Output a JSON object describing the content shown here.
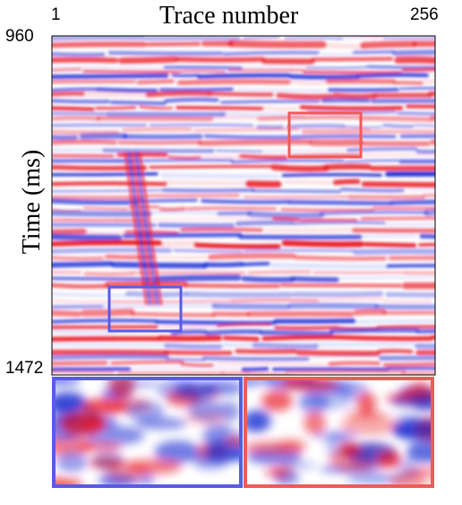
{
  "xaxis": {
    "title": "Trace number",
    "start": "1",
    "end": "256"
  },
  "yaxis": {
    "title": "Time (ms)",
    "start": "960",
    "end": "1472"
  },
  "colors": {
    "positive": "#e8141e",
    "negative": "#1428d2",
    "neutral": "#ffffff",
    "inset_left_border": "#5a5ae6",
    "inset_right_border": "#ef5a5a"
  },
  "highlight_boxes": [
    {
      "name": "blue-region",
      "color": "#5a5ae6"
    },
    {
      "name": "red-region",
      "color": "#ef5a5a"
    }
  ]
}
